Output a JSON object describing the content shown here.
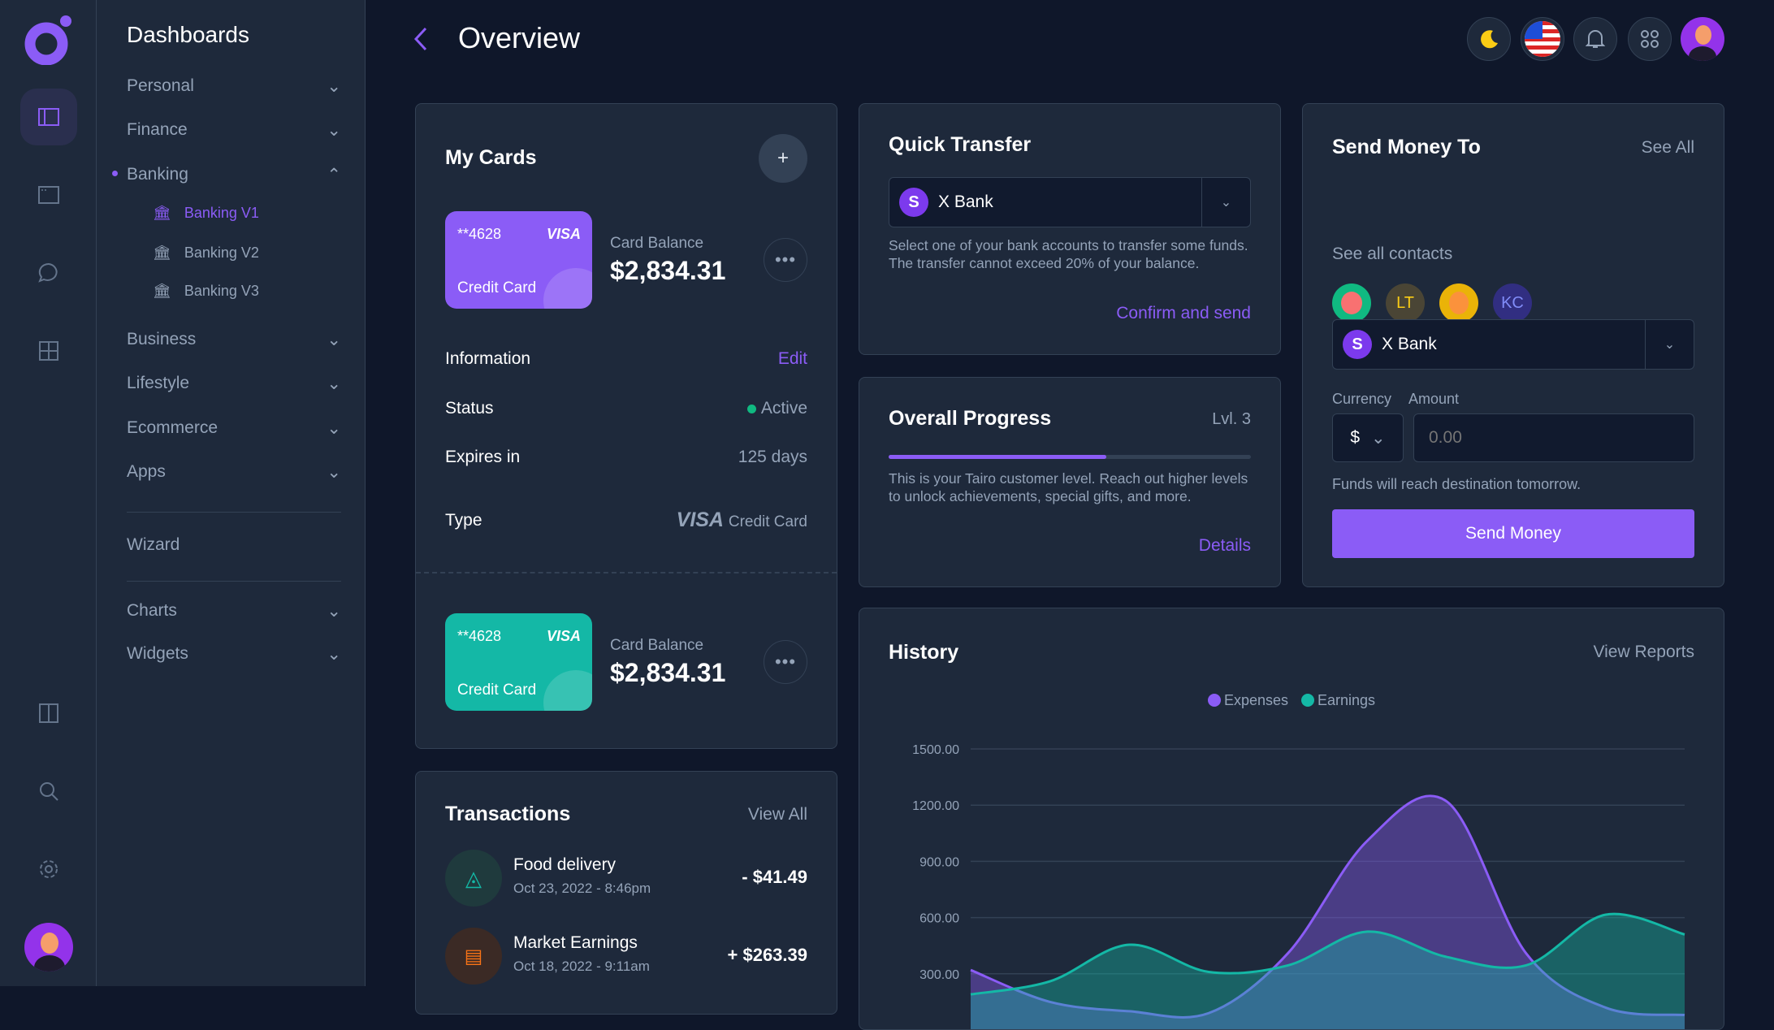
{
  "rail": {
    "items": [
      "dashboard-icon",
      "window-icon",
      "chat-icon",
      "grid-icon",
      "columns-icon",
      "search-icon",
      "settings-icon"
    ]
  },
  "nav": {
    "title": "Dashboards",
    "items": [
      {
        "label": "Personal"
      },
      {
        "label": "Finance"
      },
      {
        "label": "Banking"
      },
      {
        "label": "Business"
      },
      {
        "label": "Lifestyle"
      },
      {
        "label": "Ecommerce"
      },
      {
        "label": "Apps"
      },
      {
        "label": "Wizard"
      },
      {
        "label": "Charts"
      },
      {
        "label": "Widgets"
      }
    ],
    "banking_sub": [
      "Banking V1",
      "Banking V2",
      "Banking V3"
    ]
  },
  "header": {
    "title": "Overview"
  },
  "my_cards": {
    "title": "My Cards",
    "add": "+",
    "cards": [
      {
        "number": "**4628",
        "brand": "VISA",
        "type": "Credit Card",
        "balance_label": "Card Balance",
        "balance": "$2,834.31",
        "color": "#8b5cf6"
      },
      {
        "number": "**4628",
        "brand": "VISA",
        "type": "Credit Card",
        "balance_label": "Card Balance",
        "balance": "$2,834.31",
        "color": "#14b8a6"
      }
    ],
    "info_label": "Information",
    "edit": "Edit",
    "status_label": "Status",
    "status": "Active",
    "expires_label": "Expires in",
    "expires": "125 days",
    "type_label": "Type",
    "type_brand": "VISA",
    "type_value": "Credit Card"
  },
  "transactions": {
    "title": "Transactions",
    "view_all": "View All",
    "items": [
      {
        "name": "Food delivery",
        "date": "Oct 23, 2022 - 8:46pm",
        "amount": "- $41.49"
      },
      {
        "name": "Market Earnings",
        "date": "Oct 18, 2022 - 9:11am",
        "amount": "+ $263.39"
      }
    ]
  },
  "quick_transfer": {
    "title": "Quick Transfer",
    "bank": "X Bank",
    "description": "Select one of your bank accounts to transfer some funds. The transfer cannot exceed 20% of your balance.",
    "confirm": "Confirm and send"
  },
  "progress": {
    "title": "Overall Progress",
    "level": "Lvl. 3",
    "percent": 60,
    "description": "This is your Tairo customer level. Reach out higher levels to unlock achievements, special gifts, and more.",
    "details": "Details"
  },
  "send_money": {
    "title": "Send Money To",
    "see_all": "See All",
    "contacts": [
      "LT",
      "KC"
    ],
    "see_contacts": "See all contacts",
    "bank": "X Bank",
    "currency_label": "Currency",
    "currency": "$",
    "amount_label": "Amount",
    "amount_placeholder": "0.00",
    "note": "Funds will reach destination tomorrow.",
    "button": "Send Money"
  },
  "history": {
    "title": "History",
    "view_reports": "View Reports"
  },
  "chart_data": {
    "type": "area",
    "legend_position": "top-center",
    "grid": true,
    "ylim": [
      0,
      1500
    ],
    "yticks": [
      "1500.00",
      "1200.00",
      "900.00",
      "600.00",
      "300.00"
    ],
    "series": [
      {
        "name": "Expenses",
        "color": "#8b5cf6",
        "values": [
          320,
          150,
          100,
          90,
          410,
          1010,
          1220,
          410,
          120,
          80
        ]
      },
      {
        "name": "Earnings",
        "color": "#14b8a6",
        "values": [
          190,
          260,
          455,
          310,
          345,
          525,
          390,
          345,
          615,
          510
        ]
      }
    ]
  }
}
